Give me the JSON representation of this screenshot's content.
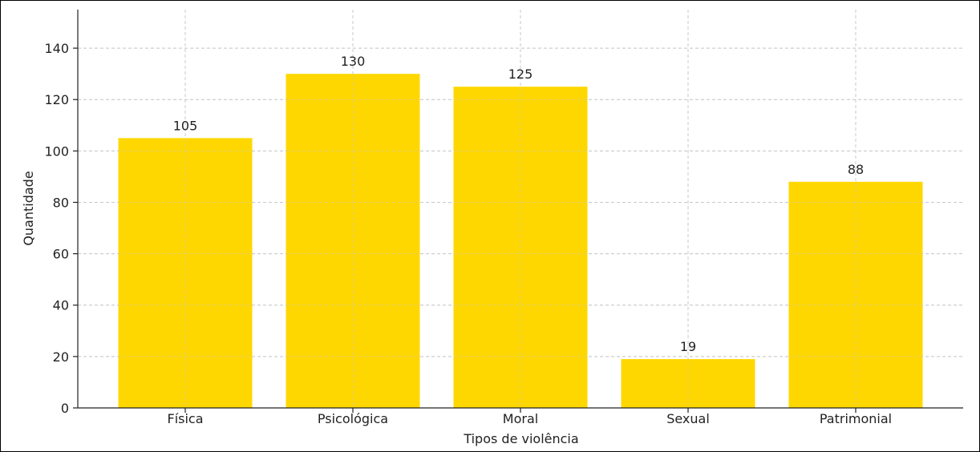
{
  "chart_data": {
    "type": "bar",
    "title": "",
    "xlabel": "Tipos de violência",
    "ylabel": "Quantidade",
    "categories": [
      "Física",
      "Psicológica",
      "Moral",
      "Sexual",
      "Patrimonial"
    ],
    "values": [
      105,
      130,
      125,
      19,
      88
    ],
    "data_labels": [
      "105",
      "130",
      "125",
      "19",
      "88"
    ],
    "ylim": [
      0,
      155
    ],
    "yticks": [
      0,
      20,
      40,
      60,
      80,
      100,
      120,
      140
    ],
    "grid": true,
    "bar_color": "#FFD700",
    "legend": "none"
  }
}
